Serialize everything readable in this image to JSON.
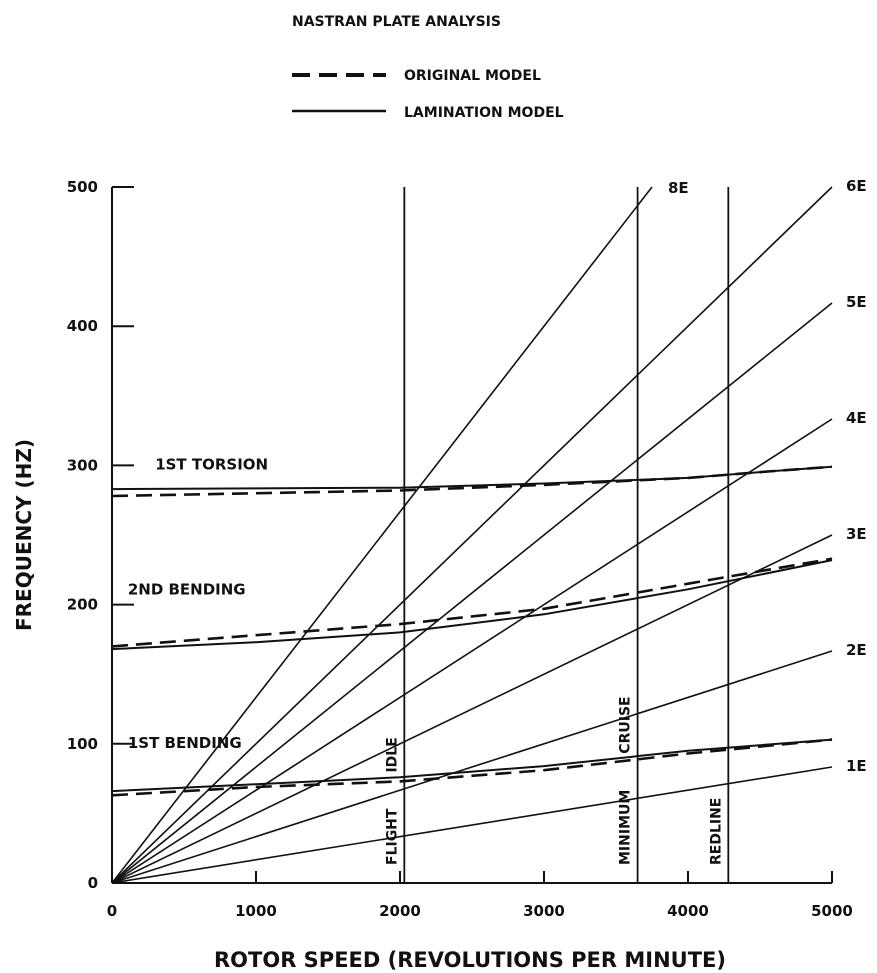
{
  "chart_data": {
    "type": "line",
    "title": "NASTRAN PLATE ANALYSIS",
    "xlabel": "ROTOR SPEED (REVOLUTIONS PER MINUTE)",
    "ylabel": "FREQUENCY (HZ)",
    "xlim": [
      0,
      5000
    ],
    "ylim": [
      0,
      500
    ],
    "xticks": [
      0,
      1000,
      2000,
      3000,
      4000,
      5000
    ],
    "yticks": [
      0,
      100,
      200,
      300,
      400,
      500
    ],
    "grid": false,
    "legend": {
      "position": "top",
      "entries": [
        {
          "label": "ORIGINAL MODEL",
          "style": "dashed"
        },
        {
          "label": "LAMINATION MODEL",
          "style": "solid"
        }
      ]
    },
    "modes": [
      {
        "name": "1ST TORSION",
        "label_y": 300,
        "original": [
          [
            0,
            278
          ],
          [
            2000,
            282
          ],
          [
            3000,
            286
          ],
          [
            4000,
            291
          ],
          [
            4600,
            296
          ],
          [
            5000,
            299
          ]
        ],
        "lamination": [
          [
            0,
            283
          ],
          [
            2000,
            284
          ],
          [
            3000,
            287
          ],
          [
            4000,
            291
          ],
          [
            4600,
            296
          ],
          [
            5000,
            299
          ]
        ]
      },
      {
        "name": "2ND BENDING",
        "label_y": 210,
        "original": [
          [
            0,
            170
          ],
          [
            1000,
            178
          ],
          [
            2000,
            186
          ],
          [
            3000,
            197
          ],
          [
            4000,
            215
          ],
          [
            5000,
            233
          ]
        ],
        "lamination": [
          [
            0,
            168
          ],
          [
            1000,
            173
          ],
          [
            2000,
            180
          ],
          [
            3000,
            193
          ],
          [
            4000,
            211
          ],
          [
            5000,
            232
          ]
        ]
      },
      {
        "name": "1ST BENDING",
        "label_y": 100,
        "original": [
          [
            0,
            63
          ],
          [
            1000,
            69
          ],
          [
            2000,
            73
          ],
          [
            3000,
            81
          ],
          [
            4000,
            93
          ],
          [
            5000,
            103
          ]
        ],
        "lamination": [
          [
            0,
            66
          ],
          [
            1000,
            71
          ],
          [
            2000,
            76
          ],
          [
            3000,
            84
          ],
          [
            4000,
            95
          ],
          [
            5000,
            103
          ]
        ]
      }
    ],
    "engine_orders": [
      {
        "name": "1E",
        "order": 1
      },
      {
        "name": "2E",
        "order": 2
      },
      {
        "name": "3E",
        "order": 3
      },
      {
        "name": "4E",
        "order": 4
      },
      {
        "name": "5E",
        "order": 5
      },
      {
        "name": "6E",
        "order": 6
      },
      {
        "name": "8E",
        "order": 8
      }
    ],
    "speed_lines": [
      {
        "name": "FLIGHT IDLE",
        "rpm": 2030,
        "word1": "FLIGHT",
        "word2": "IDLE"
      },
      {
        "name": "MINIMUM CRUISE",
        "rpm": 3650,
        "word1": "MINIMUM",
        "word2": "CRUISE"
      },
      {
        "name": "REDLINE",
        "rpm": 4280,
        "word1": "REDLINE",
        "word2": ""
      }
    ]
  }
}
